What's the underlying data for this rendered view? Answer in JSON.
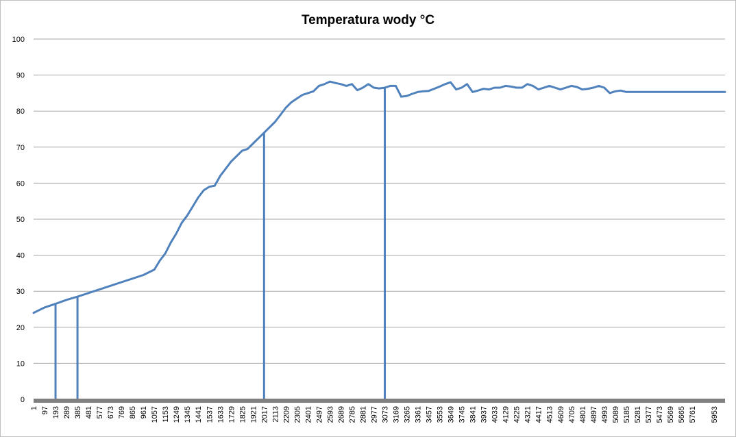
{
  "chart_data": {
    "type": "line",
    "title": "Temperatura wody °C",
    "xlabel": "",
    "ylabel": "",
    "ylim": [
      0,
      100
    ],
    "y_ticks": [
      0,
      10,
      20,
      30,
      40,
      50,
      60,
      70,
      80,
      90,
      100
    ],
    "x_tick_labels": [
      "1",
      "97",
      "193",
      "289",
      "385",
      "481",
      "577",
      "673",
      "769",
      "865",
      "961",
      "1057",
      "1153",
      "1249",
      "1345",
      "1441",
      "1537",
      "1633",
      "1729",
      "1825",
      "1921",
      "2017",
      "2113",
      "2209",
      "2305",
      "2401",
      "2497",
      "2593",
      "2689",
      "2785",
      "2881",
      "2977",
      "3073",
      "3169",
      "3265",
      "3361",
      "3457",
      "3553",
      "3649",
      "3745",
      "3841",
      "3937",
      "4033",
      "4129",
      "4225",
      "4321",
      "4417",
      "4513",
      "4609",
      "4705",
      "4801",
      "4897",
      "4993",
      "5089",
      "5185",
      "5281",
      "5377",
      "5473",
      "5569",
      "5665",
      "5761",
      "5953"
    ],
    "x_range": [
      1,
      6049
    ],
    "grid": true,
    "legend": "none",
    "color": "#4f81bd",
    "series": [
      {
        "x": [
          1,
          97,
          193,
          289,
          385,
          481,
          577,
          673,
          769,
          865,
          961,
          1057,
          1105,
          1153,
          1201,
          1249,
          1297,
          1345,
          1393,
          1441,
          1489,
          1537,
          1585,
          1633,
          1681,
          1729,
          1777,
          1825,
          1873,
          1921,
          1969,
          2017,
          2065,
          2113,
          2161,
          2209,
          2257,
          2305,
          2353,
          2401,
          2449,
          2497,
          2545,
          2593,
          2641,
          2689,
          2737,
          2785,
          2833,
          2881,
          2929,
          2977,
          3025,
          3073,
          3121,
          3169,
          3217,
          3265,
          3313,
          3361,
          3409,
          3457,
          3505,
          3553,
          3601,
          3649,
          3697,
          3745,
          3793,
          3841,
          3889,
          3937,
          3985,
          4033,
          4081,
          4129,
          4177,
          4225,
          4273,
          4321,
          4369,
          4417,
          4465,
          4513,
          4561,
          4609,
          4657,
          4705,
          4753,
          4801,
          4849,
          4897,
          4945,
          4993,
          5041,
          5089,
          5137,
          5185,
          5233,
          5281,
          5329,
          5377,
          5425,
          5473,
          5521,
          5569,
          5617,
          5665,
          5713,
          5761,
          5809,
          5857,
          5905,
          5953,
          6001,
          6049
        ],
        "y": [
          24.0,
          25.5,
          26.5,
          27.6,
          28.5,
          29.5,
          30.5,
          31.5,
          32.5,
          33.5,
          34.5,
          36.0,
          38.5,
          40.5,
          43.5,
          46.0,
          49.0,
          51.0,
          53.5,
          56.0,
          58.0,
          59.0,
          59.3,
          62.0,
          64.0,
          66.0,
          67.5,
          69.0,
          69.5,
          71.0,
          72.5,
          74.0,
          75.5,
          77.0,
          79.0,
          81.0,
          82.5,
          83.5,
          84.5,
          85.0,
          85.5,
          87.0,
          87.5,
          88.2,
          87.8,
          87.5,
          87.0,
          87.5,
          85.8,
          86.5,
          87.5,
          86.5,
          86.3,
          86.5,
          87.0,
          87.0,
          84.0,
          84.2,
          84.8,
          85.3,
          85.5,
          85.6,
          86.2,
          86.8,
          87.5,
          88.0,
          86.0,
          86.5,
          87.5,
          85.3,
          85.7,
          86.2,
          86.0,
          86.5,
          86.5,
          87.0,
          86.8,
          86.5,
          86.5,
          87.5,
          87.0,
          86.0,
          86.5,
          87.0,
          86.5,
          86.0,
          86.5,
          87.0,
          86.7,
          86.0,
          86.2,
          86.5,
          87.0,
          86.5,
          85.0,
          85.5,
          85.7,
          85.3,
          85.3,
          85.3,
          85.3,
          85.3,
          85.3,
          85.3,
          85.3,
          85.3,
          85.3,
          85.3,
          85.3,
          85.3,
          85.3,
          85.3,
          85.3,
          85.3,
          85.3,
          85.3
        ]
      }
    ],
    "vertical_markers": [
      193,
      385,
      2017,
      3073
    ]
  }
}
